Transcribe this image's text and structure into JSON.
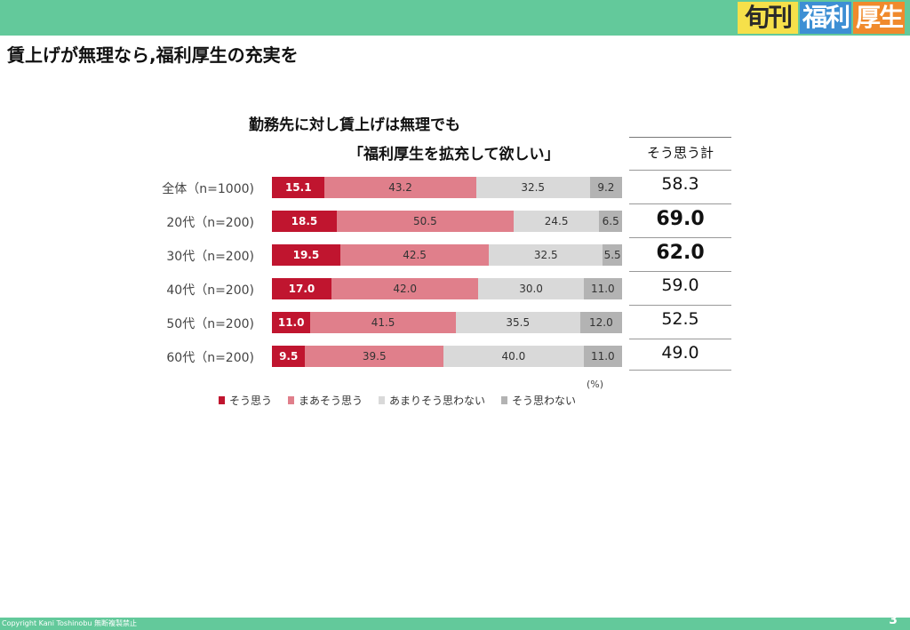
{
  "header": {
    "logo": [
      "旬刊",
      "福利",
      "厚生"
    ]
  },
  "page_title": "賃上げが無理なら,福利厚生の充実を",
  "chart_data": {
    "type": "bar",
    "stacked": true,
    "orientation": "horizontal",
    "title": [
      "勤務先に対し賃上げは無理でも",
      "「福利厚生を拡充して欲しい」"
    ],
    "unit": "(%)",
    "categories": [
      "全体（n=1000)",
      "20代（n=200)",
      "30代（n=200)",
      "40代（n=200)",
      "50代（n=200)",
      "60代（n=200)"
    ],
    "series": [
      {
        "name": "そう思う",
        "color": "#c0152f",
        "values": [
          15.1,
          18.5,
          19.5,
          17.0,
          11.0,
          9.5
        ]
      },
      {
        "name": "まあそう思う",
        "color": "#e07f8b",
        "values": [
          43.2,
          50.5,
          42.5,
          42.0,
          41.5,
          39.5
        ]
      },
      {
        "name": "あまりそう思わない",
        "color": "#d9d9d9",
        "values": [
          32.5,
          24.5,
          32.5,
          30.0,
          35.5,
          40.0
        ]
      },
      {
        "name": "そう思わない",
        "color": "#b3b3b3",
        "values": [
          9.2,
          6.5,
          5.5,
          11.0,
          12.0,
          11.0
        ]
      }
    ],
    "value_labels": [
      [
        "15.1",
        "43.2",
        "32.5",
        "9.2"
      ],
      [
        "18.5",
        "50.5",
        "24.5",
        "6.5"
      ],
      [
        "19.5",
        "42.5",
        "32.5",
        "5.5"
      ],
      [
        "17.0",
        "42.0",
        "30.0",
        "11.0"
      ],
      [
        "11.0",
        "41.5",
        "35.5",
        "12.0"
      ],
      [
        "9.5",
        "39.5",
        "40.0",
        "11.0"
      ]
    ],
    "xlim": [
      0,
      100
    ],
    "legend_position": "bottom",
    "summary_column": {
      "header": "そう思う計",
      "values": [
        "58.3",
        "69.0",
        "62.0",
        "59.0",
        "52.5",
        "49.0"
      ],
      "emphasized": [
        false,
        true,
        true,
        false,
        false,
        false
      ]
    }
  },
  "footer": {
    "copyright": "Copyright  Kani Toshinobu     無断複製禁止",
    "page_number": "3"
  }
}
